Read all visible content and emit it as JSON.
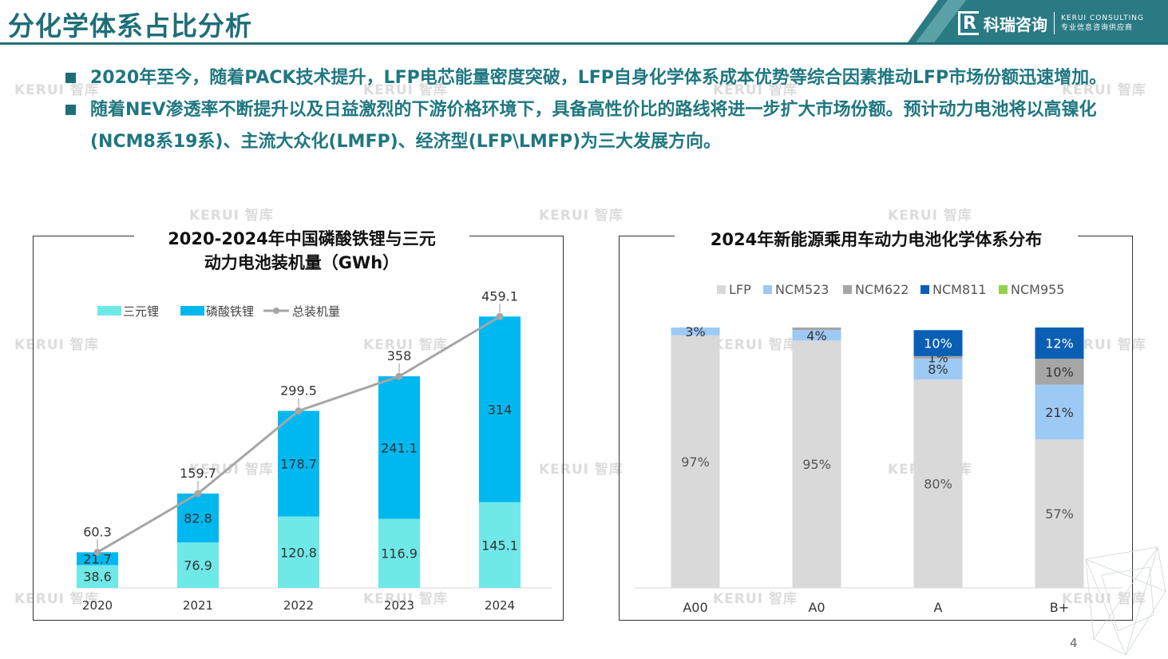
{
  "page": {
    "title": "分化学体系占比分析",
    "page_number": "4",
    "brand": {
      "logo_letter": "R",
      "name_cn": "科瑞咨询",
      "name_en": "KERUI CONSULTING",
      "tagline": "专业信息咨询供应商"
    },
    "watermark": "KERUI 智库",
    "colors": {
      "primary": "#1e6e78",
      "bullet_text": "#1f7780"
    }
  },
  "bullets": [
    {
      "text": "2020年至今，随着PACK技术提升，LFP电芯能量密度突破，LFP自身化学体系成本优势等综合因素推动LFP市场份额迅速增加。"
    },
    {
      "text": "随着NEV渗透率不断提升以及日益激烈的下游价格环境下，具备高性价比的路线将进一步扩大市场份额。预计动力电池将以高镍化(NCM8系19系)、主流大众化(LMFP)、经济型(LFP\\LMFP)为三大发展方向。"
    }
  ],
  "chart_data": [
    {
      "type": "bar",
      "stacked": true,
      "title_line1": "2020-2024年中国磷酸铁锂与三元",
      "title_line2": "动力电池装机量（GWh）",
      "categories": [
        "2020",
        "2021",
        "2022",
        "2023",
        "2024"
      ],
      "series": [
        {
          "name": "三元锂",
          "values": [
            38.6,
            76.9,
            120.8,
            116.9,
            145.1
          ],
          "color": "#6fe8e8"
        },
        {
          "name": "磷酸铁锂",
          "values": [
            21.7,
            82.8,
            178.7,
            241.1,
            314
          ],
          "color": "#00b8f0"
        }
      ],
      "line": {
        "name": "总装机量",
        "values": [
          60.3,
          159.7,
          299.5,
          358,
          459.1
        ],
        "color": "#a6a6a6"
      },
      "ylim": [
        0,
        500
      ],
      "legend_position": "top-left",
      "grid": false
    },
    {
      "type": "bar",
      "stacked": true,
      "percent": true,
      "title": "2024年新能源乘用车动力电池化学体系分布",
      "categories": [
        "A00",
        "A0",
        "A",
        "B+"
      ],
      "series": [
        {
          "name": "LFP",
          "values": [
            97,
            95,
            80,
            57
          ],
          "labels": [
            "97%",
            "95%",
            "80%",
            "57%"
          ],
          "color": "#d9d9d9"
        },
        {
          "name": "NCM523",
          "values": [
            3,
            4,
            8,
            21
          ],
          "labels": [
            "3%",
            "4%",
            "8%",
            "21%"
          ],
          "color": "#9dc9f5"
        },
        {
          "name": "NCM622",
          "values": [
            0,
            1,
            1,
            10
          ],
          "labels": [
            "",
            "",
            "1%",
            "10%"
          ],
          "color": "#a6a6a6"
        },
        {
          "name": "NCM811",
          "values": [
            0,
            0,
            10,
            12
          ],
          "labels": [
            "",
            "",
            "10%",
            "12%"
          ],
          "color": "#0a5fb4"
        },
        {
          "name": "NCM955",
          "values": [
            0,
            0,
            0,
            0
          ],
          "labels": [
            "",
            "",
            "",
            ""
          ],
          "color": "#92d050"
        }
      ],
      "ylim": [
        0,
        100
      ],
      "legend_position": "top",
      "grid": false
    }
  ]
}
